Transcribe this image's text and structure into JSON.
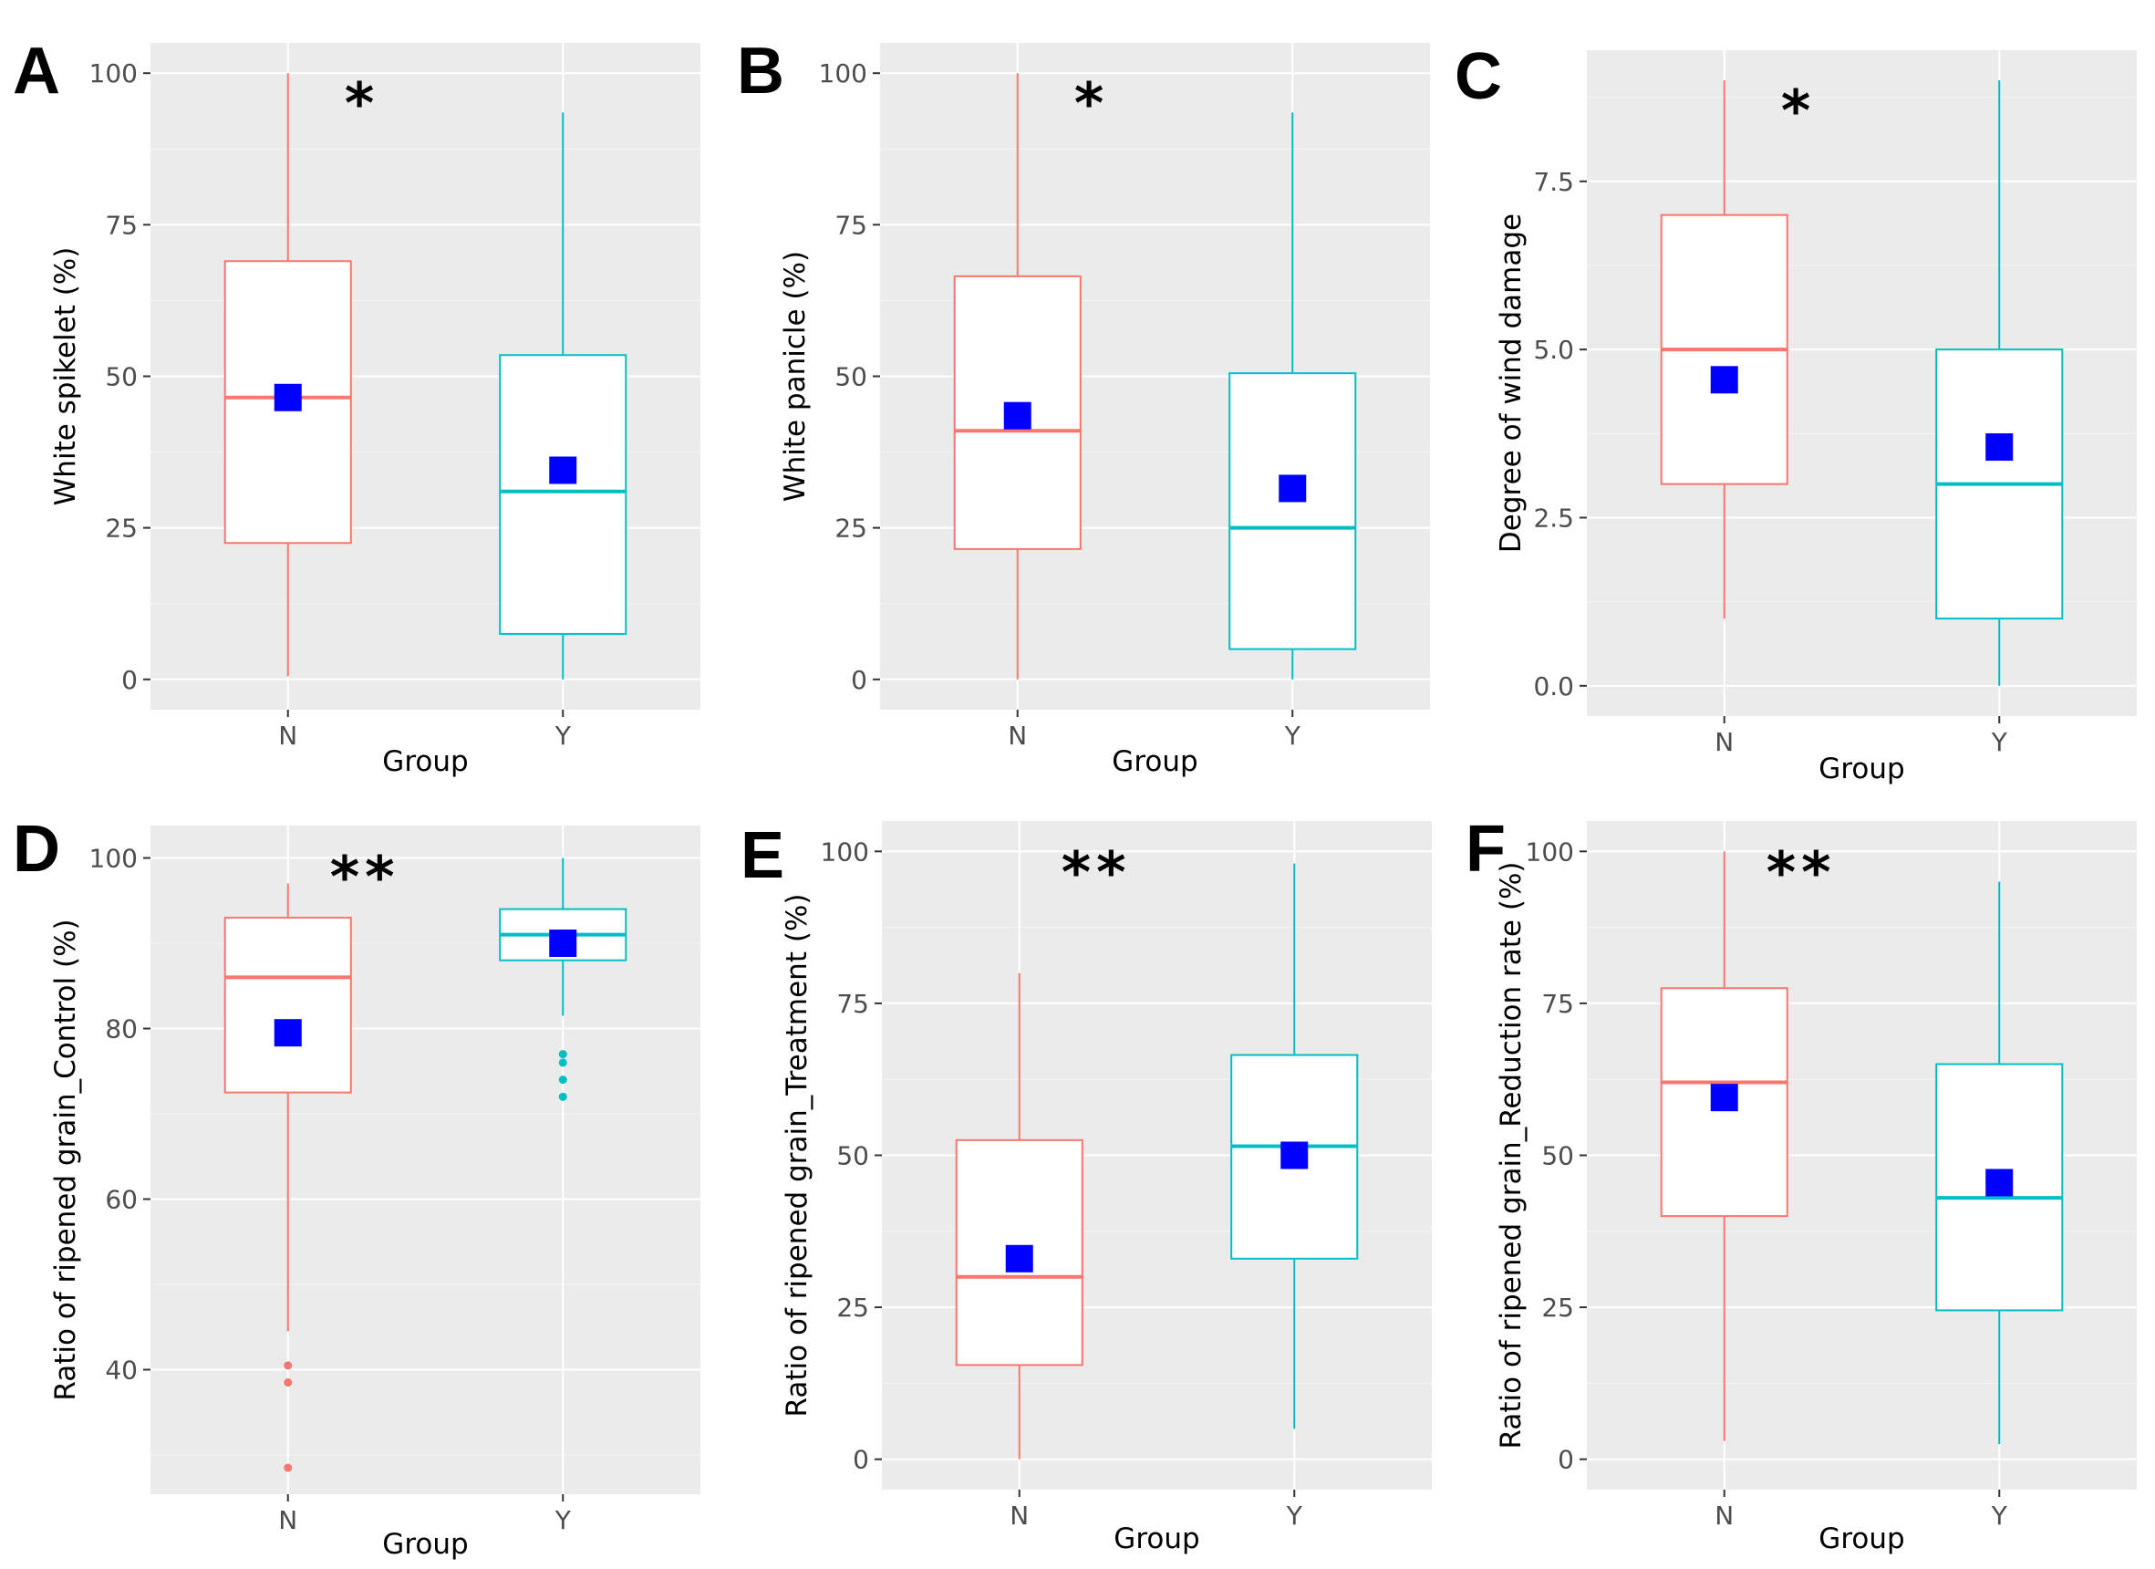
{
  "colors": {
    "panel_background": "#ebebeb",
    "grid_major": "#ffffff",
    "group_N": "#f8766d",
    "group_Y": "#00bfc4",
    "mean_marker": "#0000ff",
    "box_fill": "#ffffff"
  },
  "chart_data": [
    {
      "panel": "A",
      "type": "box",
      "significance": "*",
      "xlabel": "Group",
      "ylabel": "White spikelet (%)",
      "categories": [
        "N",
        "Y"
      ],
      "ylim": [
        -5,
        105
      ],
      "yticks": [
        0,
        25,
        50,
        75,
        100
      ],
      "ytick_labels": [
        "0",
        "25",
        "50",
        "75",
        "100"
      ],
      "grid": true,
      "boxes": [
        {
          "group": "N",
          "whisker_low": 0.5,
          "q1": 22.5,
          "median": 46.5,
          "q3": 69,
          "whisker_high": 100,
          "mean": 46.5,
          "outliers": []
        },
        {
          "group": "Y",
          "whisker_low": 0,
          "q1": 7.5,
          "median": 31,
          "q3": 53.5,
          "whisker_high": 93.5,
          "mean": 34.5,
          "outliers": []
        }
      ]
    },
    {
      "panel": "B",
      "type": "box",
      "significance": "*",
      "xlabel": "Group",
      "ylabel": "White panicle (%)",
      "categories": [
        "N",
        "Y"
      ],
      "ylim": [
        -5,
        105
      ],
      "yticks": [
        0,
        25,
        50,
        75,
        100
      ],
      "ytick_labels": [
        "0",
        "25",
        "50",
        "75",
        "100"
      ],
      "grid": true,
      "boxes": [
        {
          "group": "N",
          "whisker_low": 0,
          "q1": 21.5,
          "median": 41,
          "q3": 66.5,
          "whisker_high": 100,
          "mean": 43.5,
          "outliers": []
        },
        {
          "group": "Y",
          "whisker_low": 0,
          "q1": 5,
          "median": 25,
          "q3": 50.5,
          "whisker_high": 93.5,
          "mean": 31.5,
          "outliers": []
        }
      ]
    },
    {
      "panel": "C",
      "type": "box",
      "significance": "*",
      "xlabel": "Group",
      "ylabel": "Degree of wind damage",
      "categories": [
        "N",
        "Y"
      ],
      "ylim": [
        -0.45,
        9.45
      ],
      "yticks": [
        0,
        2.5,
        5,
        7.5
      ],
      "ytick_labels": [
        "0.0",
        "2.5",
        "5.0",
        "7.5"
      ],
      "grid": true,
      "boxes": [
        {
          "group": "N",
          "whisker_low": 1,
          "q1": 3,
          "median": 5,
          "q3": 7,
          "whisker_high": 9,
          "mean": 4.55,
          "outliers": []
        },
        {
          "group": "Y",
          "whisker_low": 0,
          "q1": 1,
          "median": 3,
          "q3": 5,
          "whisker_high": 9,
          "mean": 3.55,
          "outliers": []
        }
      ]
    },
    {
      "panel": "D",
      "type": "box",
      "significance": "**",
      "xlabel": "Group",
      "ylabel": "Ratio of ripened grain_Control (%)",
      "categories": [
        "N",
        "Y"
      ],
      "ylim": [
        25.4,
        103.8
      ],
      "yticks": [
        40,
        60,
        80,
        100
      ],
      "ytick_labels": [
        "40",
        "60",
        "80",
        "100"
      ],
      "grid": true,
      "boxes": [
        {
          "group": "N",
          "whisker_low": 44.5,
          "q1": 72.5,
          "median": 86,
          "q3": 93,
          "whisker_high": 97,
          "mean": 79.5,
          "outliers": [
            40.5,
            38.5,
            28.5
          ]
        },
        {
          "group": "Y",
          "whisker_low": 81.5,
          "q1": 88,
          "median": 91,
          "q3": 94,
          "whisker_high": 100,
          "mean": 90,
          "outliers": [
            77,
            76,
            74,
            72
          ]
        }
      ]
    },
    {
      "panel": "E",
      "type": "box",
      "significance": "**",
      "xlabel": "Group",
      "ylabel": "Ratio of ripened grain_Treatment (%)",
      "categories": [
        "N",
        "Y"
      ],
      "ylim": [
        -5,
        105
      ],
      "yticks": [
        0,
        25,
        50,
        75,
        100
      ],
      "ytick_labels": [
        "0",
        "25",
        "50",
        "75",
        "100"
      ],
      "grid": true,
      "boxes": [
        {
          "group": "N",
          "whisker_low": 0,
          "q1": 15.5,
          "median": 30,
          "q3": 52.5,
          "whisker_high": 80,
          "mean": 33,
          "outliers": []
        },
        {
          "group": "Y",
          "whisker_low": 5,
          "q1": 33,
          "median": 51.5,
          "q3": 66.5,
          "whisker_high": 98,
          "mean": 50,
          "outliers": []
        }
      ]
    },
    {
      "panel": "F",
      "type": "box",
      "significance": "**",
      "xlabel": "Group",
      "ylabel": "Ratio of ripened grain_Reduction rate (%)",
      "categories": [
        "N",
        "Y"
      ],
      "ylim": [
        -5,
        105
      ],
      "yticks": [
        0,
        25,
        50,
        75,
        100
      ],
      "ytick_labels": [
        "0",
        "25",
        "50",
        "75",
        "100"
      ],
      "grid": true,
      "boxes": [
        {
          "group": "N",
          "whisker_low": 3,
          "q1": 40,
          "median": 62,
          "q3": 77.5,
          "whisker_high": 100,
          "mean": 59.5,
          "outliers": []
        },
        {
          "group": "Y",
          "whisker_low": 2.5,
          "q1": 24.5,
          "median": 43,
          "q3": 65,
          "whisker_high": 95,
          "mean": 45.5,
          "outliers": []
        }
      ]
    }
  ]
}
